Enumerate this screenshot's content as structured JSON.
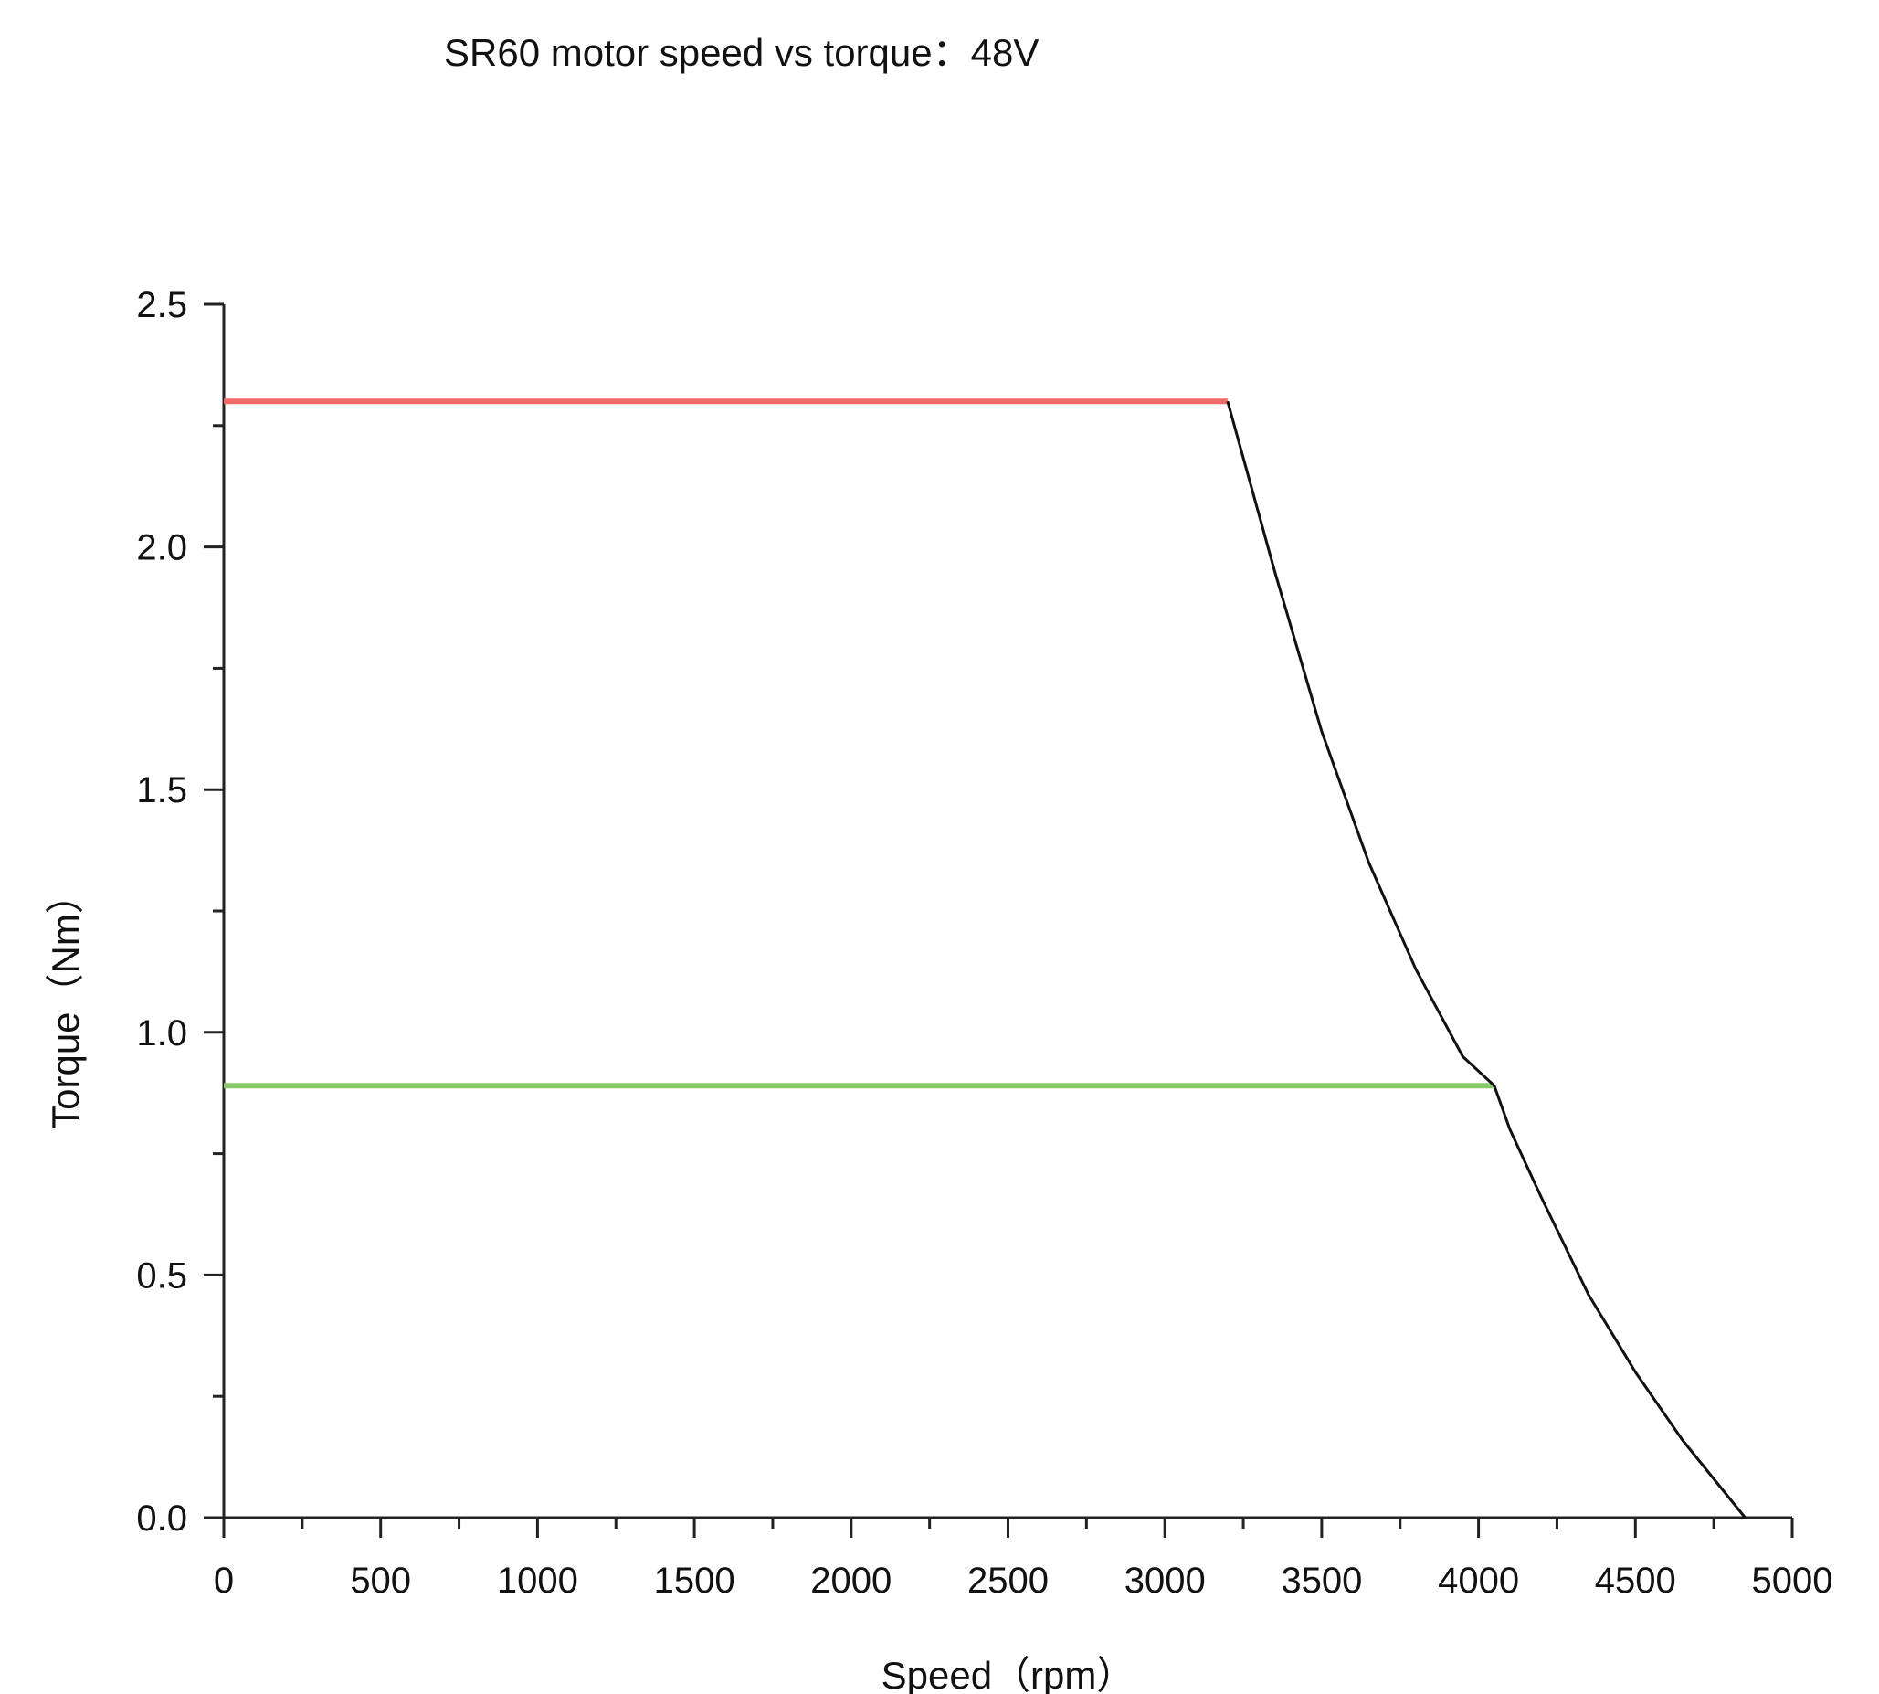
{
  "chart_data": {
    "type": "line",
    "title": "SR60 motor speed vs torque：48V",
    "xlabel": "Speed（rpm）",
    "ylabel": "Torque（Nm）",
    "xlim": [
      0,
      5000
    ],
    "ylim": [
      0,
      2.5
    ],
    "xticks": [
      0,
      500,
      1000,
      1500,
      2000,
      2500,
      3000,
      3500,
      4000,
      4500,
      5000
    ],
    "xtick_labels": [
      "0",
      "500",
      "1000",
      "1500",
      "2000",
      "2500",
      "3000",
      "3500",
      "4000",
      "4500",
      "5000"
    ],
    "yticks": [
      0,
      0.5,
      1,
      1.5,
      2,
      2.5
    ],
    "ytick_labels": [
      "0.0",
      "0.5",
      "1.0",
      "1.5",
      "2.0",
      "2.5"
    ],
    "grid": false,
    "legend": "none",
    "series": [
      {
        "color": "#f06a6a",
        "points": [
          [
            0,
            2.3
          ],
          [
            3200,
            2.3
          ]
        ]
      },
      {
        "color": "#88c86a",
        "points": [
          [
            0,
            0.89
          ],
          [
            4050,
            0.89
          ]
        ]
      },
      {
        "color": "#111111",
        "points": [
          [
            3200,
            2.3
          ],
          [
            3350,
            1.95
          ],
          [
            3500,
            1.62
          ],
          [
            3650,
            1.35
          ],
          [
            3800,
            1.13
          ],
          [
            3950,
            0.95
          ],
          [
            4050,
            0.89
          ],
          [
            4100,
            0.8
          ],
          [
            4200,
            0.66
          ],
          [
            4350,
            0.46
          ],
          [
            4500,
            0.3
          ],
          [
            4650,
            0.16
          ],
          [
            4750,
            0.08
          ],
          [
            4850,
            0.0
          ]
        ]
      }
    ]
  }
}
